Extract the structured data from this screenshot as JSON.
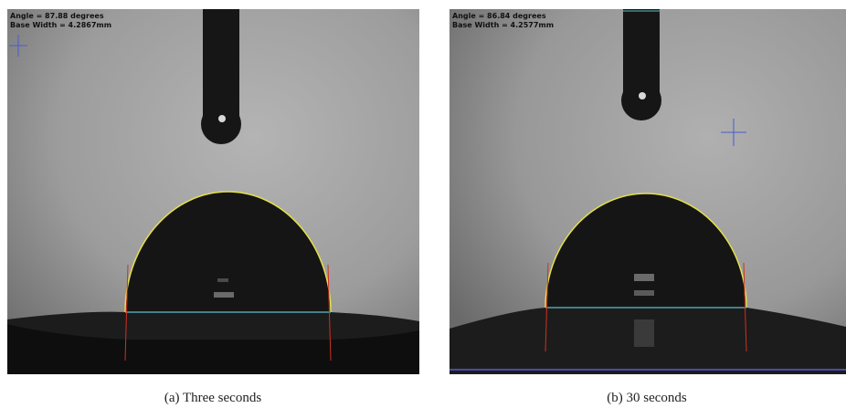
{
  "panels": [
    {
      "overlay": [
        "Angle = 87.88 degrees",
        "Base Width = 4.2867mm"
      ],
      "caption": "(a) Three seconds"
    },
    {
      "overlay": [
        "Angle = 86.84 degrees",
        "Base Width = 4.2577mm"
      ],
      "caption": "(b) 30 seconds"
    }
  ]
}
